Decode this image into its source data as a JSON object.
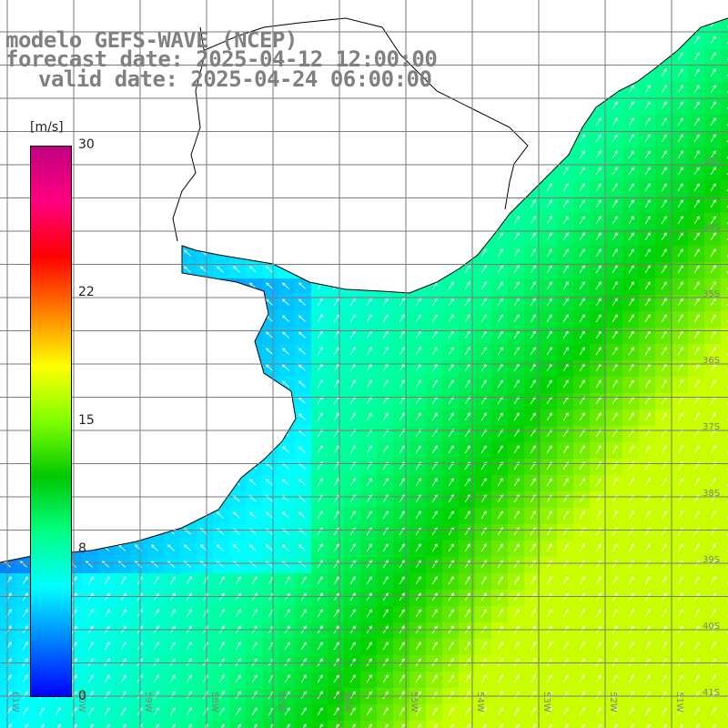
{
  "title": {
    "line1": "modelo GEFS-WAVE (NCEP)",
    "line2": "forecast date: 2025-04-12 12:00:00",
    "line3": "valid date: 2025-04-24 06:00:00"
  },
  "colorbar": {
    "unit": "[m/s]",
    "ticks": [
      {
        "label": "30",
        "value": 30
      },
      {
        "label": "22",
        "value": 22
      },
      {
        "label": "15",
        "value": 15
      },
      {
        "label": "8",
        "value": 8
      },
      {
        "label": "0",
        "value": 0
      }
    ],
    "colors": [
      "#0000ff",
      "#0080ff",
      "#00ffff",
      "#00ff80",
      "#00c800",
      "#80ff00",
      "#ffff00",
      "#ff8000",
      "#ff0000",
      "#ff0080",
      "#c00080"
    ]
  },
  "map": {
    "lon_labels": [
      "61W",
      "60W",
      "59W",
      "58W",
      "57W",
      "56W",
      "55W",
      "54W",
      "53W",
      "52W",
      "51W"
    ],
    "lat_labels": [
      "33S",
      "34S",
      "35S",
      "36S",
      "37S",
      "38S",
      "39S",
      "40S",
      "41S"
    ],
    "field": "wind speed with direction arrows",
    "land_color": "#ffffff",
    "coast_color": "#000000",
    "grid_color": "#808080"
  }
}
